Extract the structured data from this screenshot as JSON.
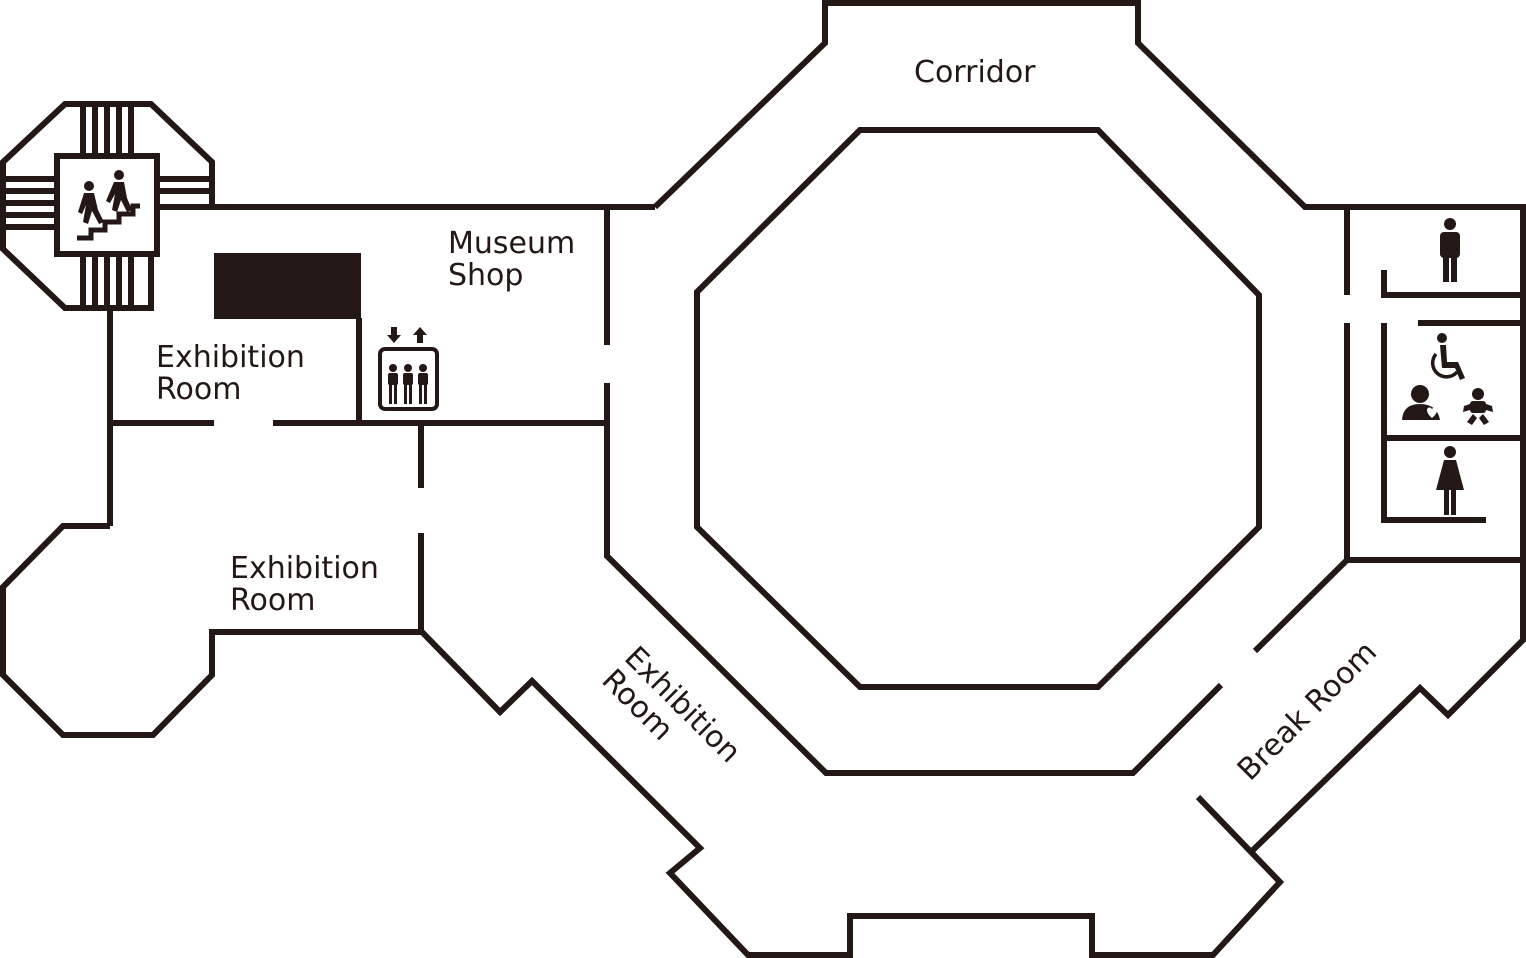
{
  "map": {
    "labels": {
      "corridor": "Corridor",
      "museum_shop_line1": "Museum",
      "museum_shop_line2": "Shop",
      "exhibition_upper_line1": "Exhibition",
      "exhibition_upper_line2": "Room",
      "exhibition_lower_line1": "Exhibition",
      "exhibition_lower_line2": "Room",
      "exhibition_diag_line1": "Exhibition",
      "exhibition_diag_line2": "Room",
      "break_room": "Break Room"
    },
    "icons": [
      "stairs-icon",
      "elevator-icon",
      "mens-restroom-icon",
      "accessible-restroom-icon",
      "nursing-room-icon",
      "baby-changing-icon",
      "womens-restroom-icon"
    ],
    "colors": {
      "ink": "#231815",
      "background": "#ffffff"
    }
  }
}
